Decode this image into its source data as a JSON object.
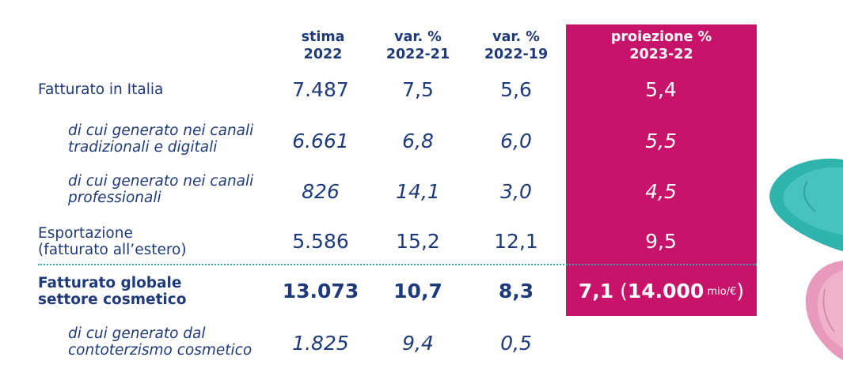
{
  "headers": {
    "stima": "stima\n2022",
    "var2122": "var. %\n2022-21",
    "var2219": "var. %\n2022-19",
    "proiezione": "proiezione %\n2023-22"
  },
  "rows": [
    {
      "label": "Fatturato in Italia",
      "stima": "7.487",
      "var2122": "7,5",
      "var2219": "5,6",
      "proiezione": "5,4"
    },
    {
      "label": "di cui generato nei canali\ntradizionali e digitali",
      "stima": "6.661",
      "var2122": "6,8",
      "var2219": "6,0",
      "proiezione": "5,5"
    },
    {
      "label": "di cui generato nei canali\nprofessionali",
      "stima": "826",
      "var2122": "14,1",
      "var2219": "3,0",
      "proiezione": "4,5"
    },
    {
      "label": "Esportazione\n(fatturato all’estero)",
      "stima": "5.586",
      "var2122": "15,2",
      "var2219": "12,1",
      "proiezione": "9,5"
    },
    {
      "label": "Fatturato globale\nsettore cosmetico",
      "stima": "13.073",
      "var2122": "10,7",
      "var2219": "8,3",
      "proiezione_value": "7,1",
      "proiezione_open": " (",
      "proiezione_total": "14.000",
      "proiezione_unit": " mio/€",
      "proiezione_close": ")"
    },
    {
      "label": "di cui generato dal\ncontoterzismo cosmetico",
      "stima": "1.825",
      "var2122": "9,4",
      "var2219": "0,5"
    }
  ],
  "colors": {
    "text": "#1f3a7a",
    "highlight": "#c8136b",
    "divider": "#3aa8b0",
    "deco_teal": "#2fb3ad",
    "deco_pink": "#e79abb"
  },
  "icons": [
    "teal-swatch-icon",
    "pink-swatch-icon"
  ]
}
